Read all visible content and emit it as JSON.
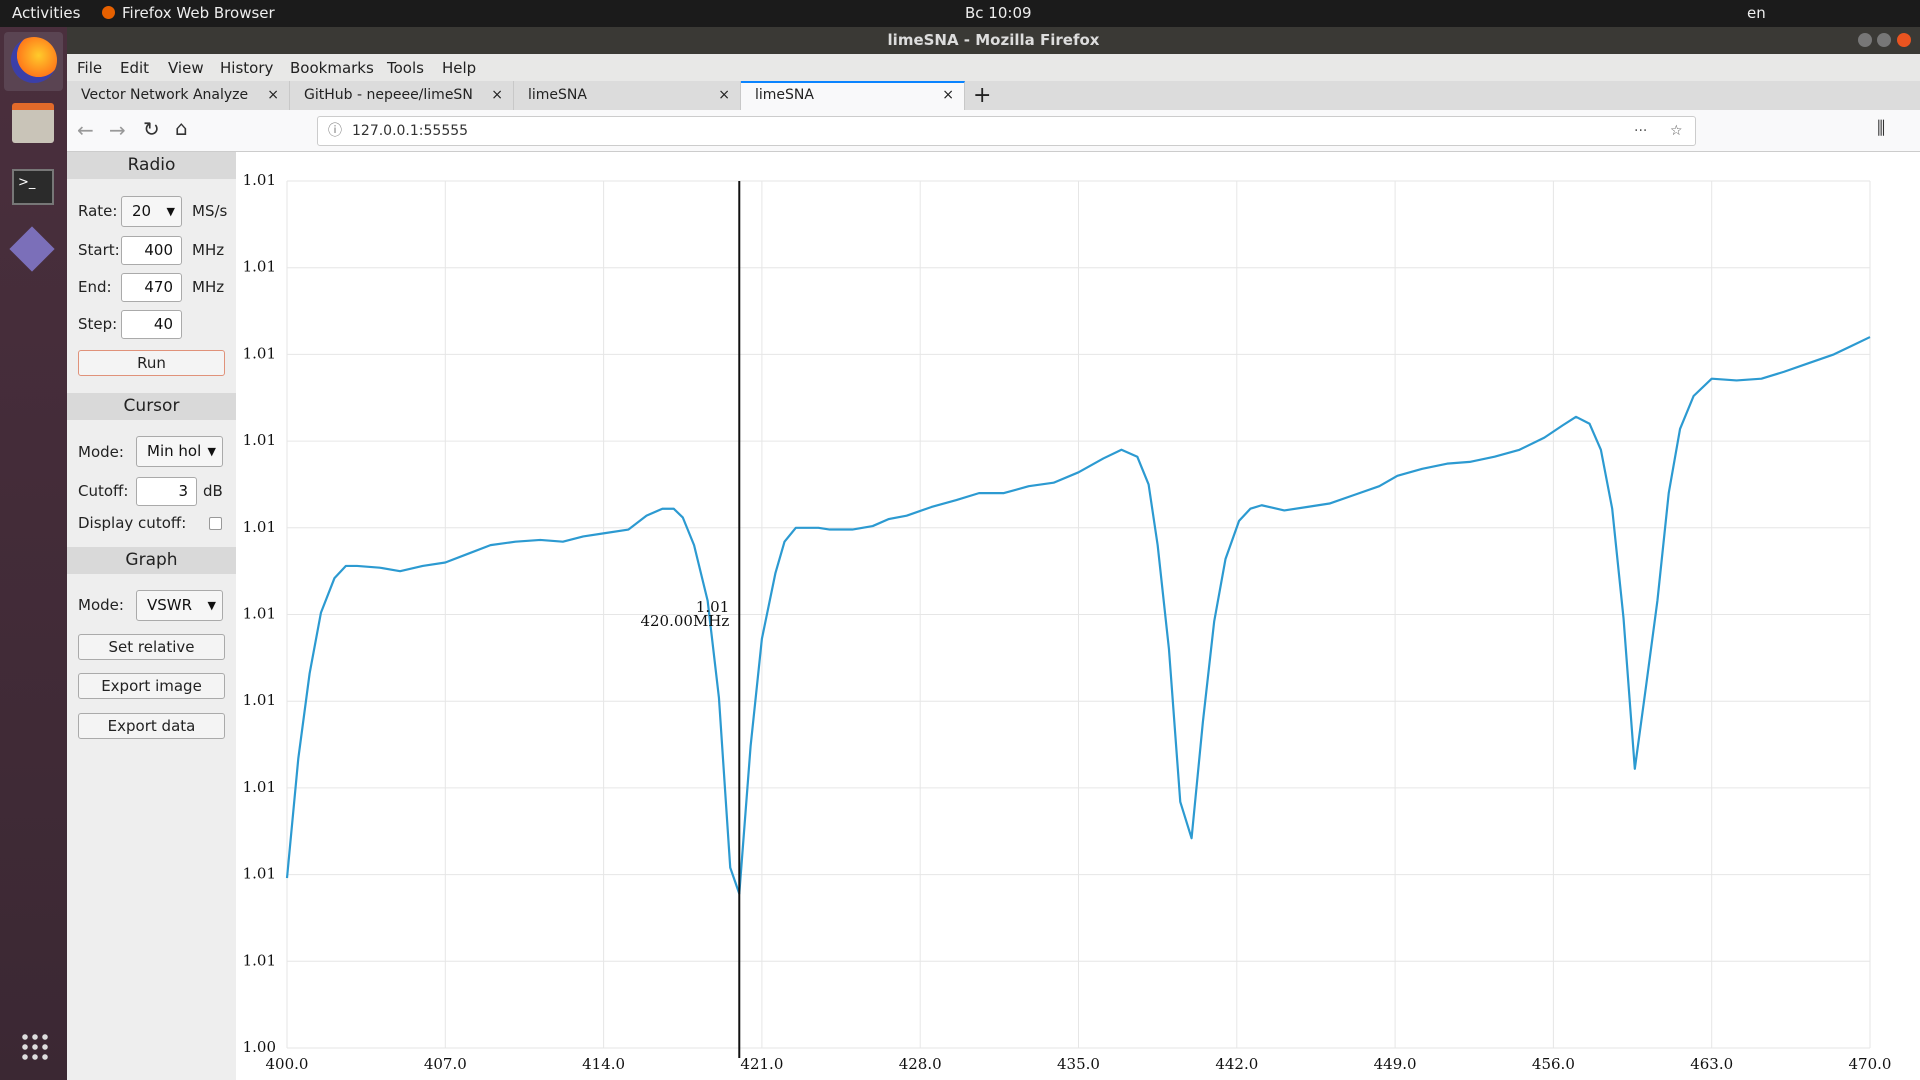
{
  "system_bar": {
    "activities": "Activities",
    "app": "Firefox Web Browser",
    "clock": "Вс 10:09",
    "lang": "en"
  },
  "window_title": "limeSNA - Mozilla Firefox",
  "menu": [
    "File",
    "Edit",
    "View",
    "History",
    "Bookmarks",
    "Tools",
    "Help"
  ],
  "tabs": [
    "Vector Network Analyze",
    "GitHub - nepeee/limeSN",
    "limeSNA",
    "limeSNA"
  ],
  "url": "127.0.0.1:55555",
  "sidebar": {
    "radio": {
      "heading": "Radio",
      "rate_label": "Rate:",
      "rate": "20",
      "rate_unit": "MS/s",
      "start_label": "Start:",
      "start": "400",
      "start_unit": "MHz",
      "end_label": "End:",
      "end": "470",
      "end_unit": "MHz",
      "step_label": "Step:",
      "step": "40",
      "run": "Run"
    },
    "cursor": {
      "heading": "Cursor",
      "mode_label": "Mode:",
      "mode": "Min hol",
      "cutoff_label": "Cutoff:",
      "cutoff": "3",
      "cutoff_unit": "dB",
      "display_cutoff_label": "Display cutoff:"
    },
    "graph": {
      "heading": "Graph",
      "mode_label": "Mode:",
      "mode": "VSWR",
      "set_relative": "Set relative",
      "export_image": "Export image",
      "export_data": "Export data"
    }
  },
  "chart": {
    "type": "line",
    "x": [
      400.0,
      400.5,
      401.0,
      401.5,
      402.1,
      402.6,
      403.1,
      404.1,
      405.0,
      406.0,
      407.0,
      408.0,
      409.0,
      410.1,
      411.2,
      412.2,
      413.1,
      414.1,
      415.1,
      415.9,
      416.6,
      417.1,
      417.5,
      418.0,
      418.6,
      419.1,
      419.6,
      420.0,
      420.5,
      421.0,
      421.6,
      422.0,
      422.5,
      423.5,
      424.0,
      425.0,
      425.9,
      426.6,
      427.4,
      428.5,
      429.6,
      430.6,
      431.7,
      432.8,
      433.9,
      435.0,
      436.1,
      436.9,
      437.6,
      438.1,
      438.5,
      439.0,
      439.5,
      440.0,
      440.5,
      441.0,
      441.5,
      442.1,
      442.6,
      443.1,
      444.1,
      445.1,
      446.1,
      447.2,
      448.3,
      449.1,
      450.2,
      451.3,
      452.3,
      453.4,
      454.5,
      455.6,
      456.4,
      457.0,
      457.6,
      458.1,
      458.6,
      459.1,
      459.6,
      460.1,
      460.6,
      461.1,
      461.6,
      462.2,
      463.0,
      464.1,
      465.2,
      466.2,
      467.3,
      468.4,
      469.2,
      470.0
    ],
    "series": [
      {
        "color": "#2c9ad1",
        "values": [
          1.00588,
          1.00657,
          1.00706,
          1.00741,
          1.00761,
          1.00768,
          1.00768,
          1.00767,
          1.00765,
          1.00768,
          1.0077,
          1.00775,
          1.0078,
          1.00782,
          1.00783,
          1.00782,
          1.00785,
          1.00787,
          1.00789,
          1.00797,
          1.00801,
          1.00801,
          1.00796,
          1.0078,
          1.00748,
          1.00692,
          1.00594,
          1.00579,
          1.00664,
          1.00726,
          1.00764,
          1.00782,
          1.0079,
          1.0079,
          1.00789,
          1.00789,
          1.00791,
          1.00795,
          1.00797,
          1.00802,
          1.00806,
          1.0081,
          1.0081,
          1.00814,
          1.00816,
          1.00822,
          1.0083,
          1.00835,
          1.00831,
          1.00815,
          1.0078,
          1.0072,
          1.00632,
          1.00611,
          1.00678,
          1.00736,
          1.00772,
          1.00794,
          1.00801,
          1.00803,
          1.008,
          1.00802,
          1.00804,
          1.00809,
          1.00814,
          1.0082,
          1.00824,
          1.00827,
          1.00828,
          1.00831,
          1.00835,
          1.00842,
          1.00849,
          1.00854,
          1.0085,
          1.00835,
          1.00801,
          1.00738,
          1.00651,
          1.00699,
          1.00748,
          1.0081,
          1.00847,
          1.00866,
          1.00876,
          1.00875,
          1.00876,
          1.0088,
          1.00885,
          1.0089,
          1.00895,
          1.009
        ]
      }
    ],
    "xlim": [
      400,
      470
    ],
    "xticks": [
      {
        "value": 400,
        "label": "400.0"
      },
      {
        "value": 407,
        "label": "407.0"
      },
      {
        "value": 414,
        "label": "414.0"
      },
      {
        "value": 421,
        "label": "421.0"
      },
      {
        "value": 428,
        "label": "428.0"
      },
      {
        "value": 435,
        "label": "435.0"
      },
      {
        "value": 442,
        "label": "442.0"
      },
      {
        "value": 449,
        "label": "449.0"
      },
      {
        "value": 456,
        "label": "456.0"
      },
      {
        "value": 463,
        "label": "463.0"
      },
      {
        "value": 470,
        "label": "470.0"
      }
    ],
    "ylim": [
      1.0049,
      1.0099
    ],
    "yticks": [
      {
        "value": 1.0049,
        "label": "1.00"
      },
      {
        "value": 1.0054,
        "label": "1.01"
      },
      {
        "value": 1.0059,
        "label": "1.01"
      },
      {
        "value": 1.0064,
        "label": "1.01"
      },
      {
        "value": 1.0069,
        "label": "1.01"
      },
      {
        "value": 1.0074,
        "label": "1.01"
      },
      {
        "value": 1.0079,
        "label": "1.01"
      },
      {
        "value": 1.0084,
        "label": "1.01"
      },
      {
        "value": 1.0089,
        "label": "1.01"
      },
      {
        "value": 1.0094,
        "label": "1.01"
      },
      {
        "value": 1.0099,
        "label": "1.01"
      }
    ],
    "grid": true,
    "cursor": {
      "x": 420,
      "value_label": "1.01",
      "freq_label": "420.00MHz"
    }
  }
}
